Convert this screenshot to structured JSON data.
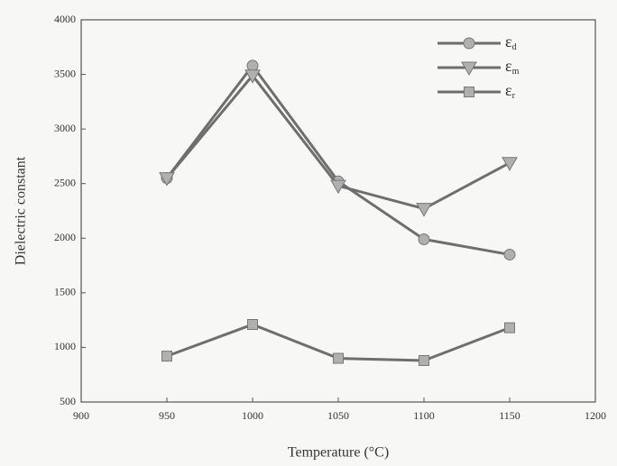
{
  "chart_data": {
    "type": "line",
    "x_label": "Temperature (°C)",
    "y_label": "Dielectric constant",
    "x": [
      950,
      1000,
      1050,
      1100,
      1150
    ],
    "series": [
      {
        "name": "εd",
        "color": "#6e6e6e",
        "marker": "circle",
        "values": [
          2550,
          3580,
          2520,
          1990,
          1850
        ]
      },
      {
        "name": "εm",
        "color": "#6e6e6e",
        "marker": "triangle-down",
        "values": [
          2550,
          3490,
          2480,
          2270,
          2690
        ]
      },
      {
        "name": "εr",
        "color": "#6e6e6e",
        "marker": "square",
        "values": [
          920,
          1210,
          900,
          880,
          1180
        ]
      }
    ],
    "xlim": [
      900,
      1200
    ],
    "xticks": [
      900,
      950,
      1000,
      1050,
      1100,
      1150,
      1200
    ],
    "ylim": [
      500,
      4000
    ],
    "yticks": [
      500,
      1000,
      1500,
      2000,
      2500,
      3000,
      3500,
      4000
    ],
    "legend": "upper-right"
  }
}
